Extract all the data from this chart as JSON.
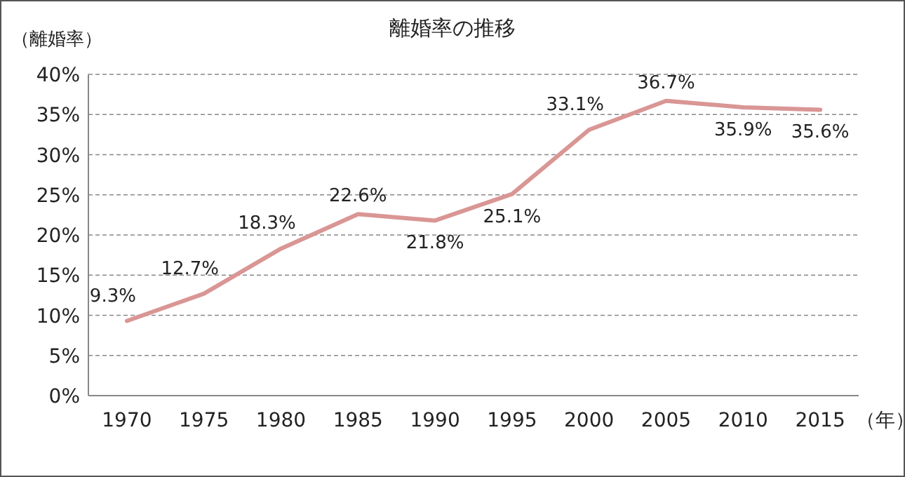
{
  "chart_data": {
    "type": "line",
    "title": "離婚率の推移",
    "ylabel": "（離婚率）",
    "xlabel": "（年）",
    "categories": [
      "1970",
      "1975",
      "1980",
      "1985",
      "1990",
      "1995",
      "2000",
      "2005",
      "2010",
      "2015"
    ],
    "series": [
      {
        "color": "#d99694",
        "values": [
          9.3,
          12.7,
          18.3,
          22.6,
          21.8,
          25.1,
          33.1,
          36.7,
          35.9,
          35.6
        ],
        "value_labels": [
          "9.3%",
          "12.7%",
          "18.3%",
          "22.6%",
          "21.8%",
          "25.1%",
          "33.1%",
          "36.7%",
          "35.9%",
          "35.6%"
        ]
      }
    ],
    "ylim": [
      0,
      40
    ],
    "yticks": [
      {
        "value": 0,
        "label": "0%"
      },
      {
        "value": 5,
        "label": "5%"
      },
      {
        "value": 10,
        "label": "10%"
      },
      {
        "value": 15,
        "label": "15%"
      },
      {
        "value": 20,
        "label": "20%"
      },
      {
        "value": 25,
        "label": "25%"
      },
      {
        "value": 30,
        "label": "30%"
      },
      {
        "value": 35,
        "label": "35%"
      },
      {
        "value": 40,
        "label": "40%"
      }
    ],
    "grid": "y",
    "marker": "none",
    "line_style": "solid"
  }
}
